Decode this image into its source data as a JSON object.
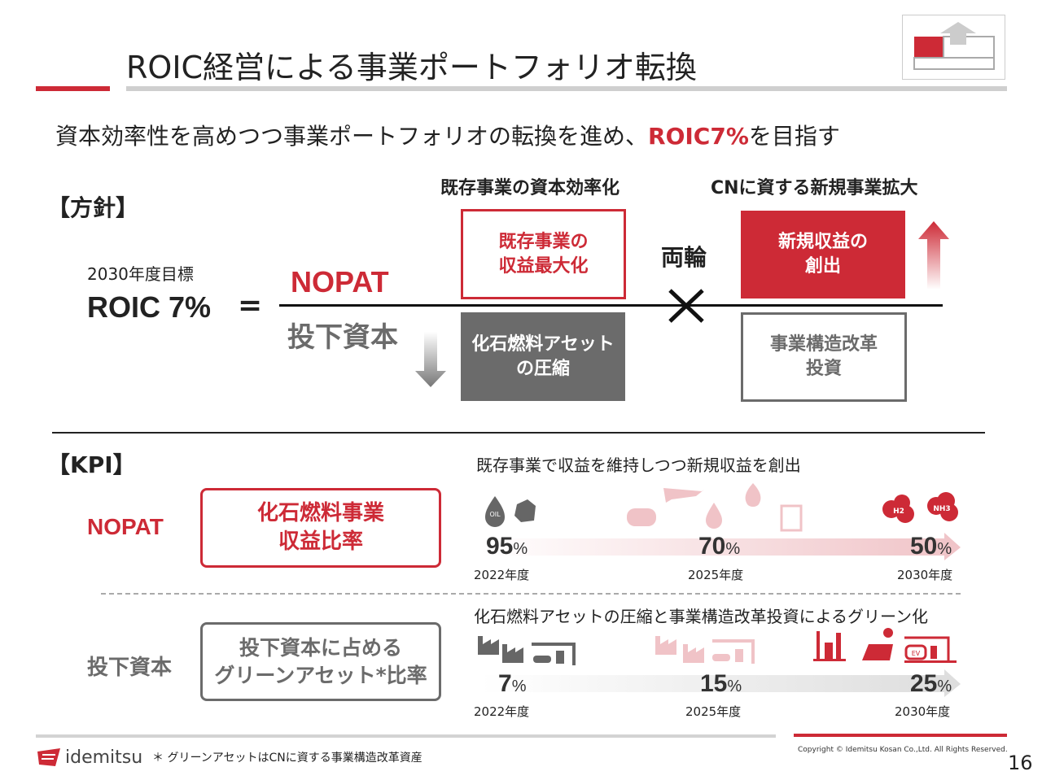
{
  "title": "ROIC経営による事業ポートフォリオ転換",
  "subtitle": {
    "prefix": "資本効率性を高めつつ事業ポートフォリオの転換を進め、",
    "highlight": "ROIC7%",
    "suffix": "を目指す"
  },
  "policy": {
    "heading": "【方針】",
    "col_existing": "既存事業の資本効率化",
    "col_new": "CNに資する新規事業拡大",
    "target_label": "2030年度目標",
    "target_value": "ROIC 7%",
    "equals": "=",
    "numerator": "NOPAT",
    "denominator": "投下資本",
    "box_existing_profit": "既存事業の\n収益最大化",
    "box_fossil": "化石燃料アセット\nの圧縮",
    "both_wheels": "両輪",
    "box_new_profit": "新規収益の\n創出",
    "box_reform": "事業構造改革\n投資"
  },
  "kpi": {
    "heading": "【KPI】",
    "nopat": {
      "label": "NOPAT",
      "box": "化石燃料事業\n収益比率",
      "caption": "既存事業で収益を維持しつつ新規収益を創出",
      "points": [
        {
          "value": "95",
          "unit": "%",
          "year": "2022年度"
        },
        {
          "value": "70",
          "unit": "%",
          "year": "2025年度"
        },
        {
          "value": "50",
          "unit": "%",
          "year": "2030年度"
        }
      ],
      "icon_labels": [
        "OIL",
        "H2",
        "NH3"
      ]
    },
    "capital": {
      "label": "投下資本",
      "box": "投下資本に占める\nグリーンアセット*比率",
      "caption": "化石燃料アセットの圧縮と事業構造改革投資によるグリーン化",
      "points": [
        {
          "value": "7",
          "unit": "%",
          "year": "2022年度"
        },
        {
          "value": "15",
          "unit": "%",
          "year": "2025年度"
        },
        {
          "value": "25",
          "unit": "%",
          "year": "2030年度"
        }
      ],
      "icon_labels": [
        "EV"
      ]
    }
  },
  "footer": {
    "logo": "idemitsu",
    "note": "＊ グリーンアセットはCNに資する事業構造改革資産",
    "copyright": "Copyright © Idemitsu Kosan Co.,Ltd.  All Rights Reserved.",
    "page": "16"
  },
  "colors": {
    "accent": "#cd2a36",
    "gray": "#6b6b6b"
  }
}
